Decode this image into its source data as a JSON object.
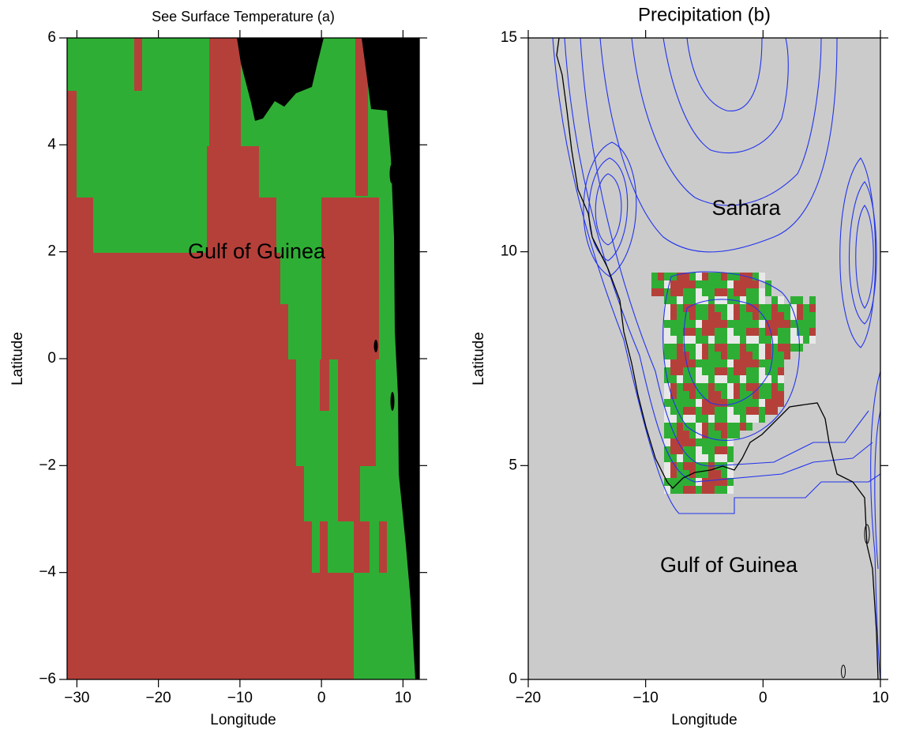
{
  "chart_data": [
    {
      "type": "map",
      "title": "See Surface Temperature (a)",
      "x_label": "Longitude",
      "y_label": "Latitude",
      "xlim": [
        -31.2,
        12
      ],
      "ylim": [
        -6,
        6
      ],
      "xticks": [
        {
          "value": -30,
          "label": "−30"
        },
        {
          "value": -20,
          "label": "−20"
        },
        {
          "value": -10,
          "label": "−10"
        },
        0,
        10
      ],
      "yticks": [
        {
          "value": -6,
          "label": "−6"
        },
        {
          "value": -4,
          "label": "−4"
        },
        {
          "value": -2,
          "label": "−2"
        },
        0,
        2,
        4,
        6
      ],
      "annotations": [
        "Gulf of Guinea"
      ]
    },
    {
      "type": "map",
      "title": "Precipitation (b)",
      "x_label": "Longitude",
      "y_label": "Latitude",
      "xlim": [
        -20,
        10
      ],
      "ylim": [
        0,
        15
      ],
      "xticks": [
        {
          "value": -20,
          "label": "−20"
        },
        {
          "value": -10,
          "label": "−10"
        },
        0,
        10
      ],
      "yticks": [
        0,
        5,
        10,
        15
      ],
      "annotations": [
        "Sahara",
        "Gulf of Guinea"
      ]
    }
  ]
}
